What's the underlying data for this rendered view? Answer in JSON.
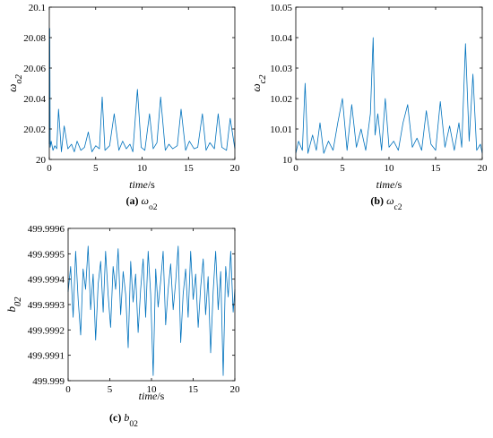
{
  "series_color": "#0072bd",
  "chart_data": [
    {
      "id": "a",
      "type": "line",
      "caption": {
        "label": "(a)",
        "symbol": "ω",
        "sub": "o2"
      },
      "ylabel": {
        "symbol": "ω",
        "sub": "o2"
      },
      "xlabel": {
        "italic": "time",
        "unit": "/s"
      },
      "xlim": [
        0,
        20
      ],
      "ylim": [
        20,
        20.1
      ],
      "xticks": [
        0,
        5,
        10,
        15,
        20
      ],
      "xtick_labels": [
        "0",
        "5",
        "10",
        "15",
        "20"
      ],
      "yticks": [
        20,
        20.02,
        20.04,
        20.06,
        20.08,
        20.1
      ],
      "ytick_labels": [
        "20",
        "20.02",
        "20.04",
        "20.06",
        "20.08",
        "20.1"
      ],
      "x": [
        0,
        0.05,
        0.1,
        0.2,
        0.4,
        0.6,
        0.8,
        1.0,
        1.3,
        1.6,
        2.0,
        2.4,
        2.7,
        3.0,
        3.4,
        3.8,
        4.2,
        4.6,
        5.0,
        5.4,
        5.7,
        6.0,
        6.5,
        7.0,
        7.5,
        7.9,
        8.3,
        8.7,
        9.0,
        9.5,
        9.9,
        10.3,
        10.8,
        11.2,
        11.6,
        12.0,
        12.5,
        12.9,
        13.3,
        13.8,
        14.2,
        14.7,
        15.1,
        15.6,
        16.0,
        16.5,
        16.9,
        17.3,
        17.8,
        18.2,
        18.6,
        19.1,
        19.5,
        20.0
      ],
      "y": [
        20.01,
        20.086,
        20.008,
        20.012,
        20.006,
        20.009,
        20.007,
        20.033,
        20.005,
        20.022,
        20.007,
        20.01,
        20.005,
        20.012,
        20.006,
        20.008,
        20.018,
        20.005,
        20.009,
        20.007,
        20.041,
        20.006,
        20.009,
        20.03,
        20.006,
        20.012,
        20.007,
        20.01,
        20.005,
        20.046,
        20.008,
        20.006,
        20.03,
        20.007,
        20.011,
        20.041,
        20.006,
        20.01,
        20.007,
        20.009,
        20.033,
        20.006,
        20.012,
        20.007,
        20.008,
        20.03,
        20.006,
        20.011,
        20.007,
        20.03,
        20.008,
        20.006,
        20.027,
        20.007
      ]
    },
    {
      "id": "b",
      "type": "line",
      "caption": {
        "label": "(b)",
        "symbol": "ω",
        "sub": "c2"
      },
      "ylabel": {
        "symbol": "ω",
        "sub": "c2"
      },
      "xlabel": {
        "italic": "time",
        "unit": "/s"
      },
      "xlim": [
        0,
        20
      ],
      "ylim": [
        10,
        10.05
      ],
      "xticks": [
        0,
        5,
        10,
        15,
        20
      ],
      "xtick_labels": [
        "0",
        "5",
        "10",
        "15",
        "20"
      ],
      "yticks": [
        10,
        10.01,
        10.02,
        10.03,
        10.04,
        10.05
      ],
      "ytick_labels": [
        "10",
        "10.01",
        "10.02",
        "10.03",
        "10.04",
        "10.05"
      ],
      "x": [
        0,
        0.3,
        0.7,
        1.0,
        1.3,
        1.8,
        2.2,
        2.6,
        3.0,
        3.5,
        4.0,
        4.5,
        5.0,
        5.5,
        6.0,
        6.5,
        7.0,
        7.5,
        8.0,
        8.3,
        8.5,
        8.8,
        9.2,
        9.6,
        10.0,
        10.5,
        11.0,
        11.5,
        12.0,
        12.5,
        13.0,
        13.5,
        14.0,
        14.5,
        15.0,
        15.5,
        16.0,
        16.5,
        17.0,
        17.5,
        17.8,
        18.2,
        18.6,
        19.0,
        19.4,
        19.8,
        20.0
      ],
      "y": [
        10.002,
        10.006,
        10.003,
        10.025,
        10.002,
        10.008,
        10.003,
        10.012,
        10.002,
        10.006,
        10.003,
        10.012,
        10.02,
        10.003,
        10.018,
        10.004,
        10.01,
        10.003,
        10.015,
        10.04,
        10.008,
        10.015,
        10.003,
        10.02,
        10.004,
        10.006,
        10.003,
        10.012,
        10.018,
        10.004,
        10.007,
        10.003,
        10.016,
        10.005,
        10.003,
        10.019,
        10.004,
        10.011,
        10.003,
        10.012,
        10.004,
        10.038,
        10.006,
        10.028,
        10.003,
        10.005,
        10.002
      ]
    },
    {
      "id": "c",
      "type": "line",
      "caption": {
        "label": "(c)",
        "symbol": "b",
        "sub": "02"
      },
      "ylabel": {
        "symbol": "b",
        "sub": "02"
      },
      "xlabel": {
        "italic": "time",
        "unit": "/s"
      },
      "xlim": [
        0,
        20
      ],
      "ylim": [
        499.999,
        499.9996
      ],
      "xticks": [
        0,
        5,
        10,
        15,
        20
      ],
      "xtick_labels": [
        "0",
        "5",
        "10",
        "15",
        "20"
      ],
      "yticks": [
        499.999,
        499.9991,
        499.9992,
        499.9993,
        499.9994,
        499.9995,
        499.9996
      ],
      "ytick_labels": [
        "499.999",
        "499.9991",
        "499.9992",
        "499.9993",
        "499.9994",
        "499.9995",
        "499.9996"
      ],
      "x": [
        0,
        0.3,
        0.6,
        0.9,
        1.2,
        1.5,
        1.8,
        2.1,
        2.4,
        2.7,
        3.0,
        3.3,
        3.6,
        3.9,
        4.2,
        4.5,
        4.8,
        5.1,
        5.4,
        5.7,
        6.0,
        6.3,
        6.6,
        6.9,
        7.2,
        7.5,
        7.8,
        8.1,
        8.4,
        8.7,
        9.0,
        9.3,
        9.6,
        9.9,
        10.2,
        10.5,
        10.8,
        11.1,
        11.4,
        11.7,
        12.0,
        12.3,
        12.6,
        12.9,
        13.2,
        13.5,
        13.8,
        14.1,
        14.4,
        14.7,
        15.0,
        15.3,
        15.6,
        15.9,
        16.2,
        16.5,
        16.8,
        17.1,
        17.4,
        17.7,
        18.0,
        18.3,
        18.6,
        18.9,
        19.2,
        19.5,
        19.8,
        20.0
      ],
      "y": [
        499.99935,
        499.99945,
        499.99925,
        499.99951,
        499.99932,
        499.99918,
        499.99944,
        499.99936,
        499.99953,
        499.99928,
        499.99942,
        499.99916,
        499.99938,
        499.99947,
        499.99927,
        499.99951,
        499.99934,
        499.99921,
        499.99945,
        499.99936,
        499.99952,
        499.99926,
        499.99943,
        499.99934,
        499.99913,
        499.99947,
        499.99931,
        499.99942,
        499.99919,
        499.99936,
        499.99948,
        499.99925,
        499.99951,
        499.99934,
        499.99902,
        499.99944,
        499.99929,
        499.99939,
        499.99951,
        499.99922,
        499.99936,
        499.99946,
        499.99928,
        499.99939,
        499.99953,
        499.99915,
        499.99934,
        499.99944,
        499.99925,
        499.99951,
        499.99932,
        499.99942,
        499.99921,
        499.99937,
        499.99948,
        499.99926,
        499.99941,
        499.99911,
        499.99935,
        499.99951,
        499.99928,
        499.99943,
        499.99902,
        499.99945,
        499.99933,
        499.99951,
        499.99927,
        499.99936
      ]
    }
  ]
}
